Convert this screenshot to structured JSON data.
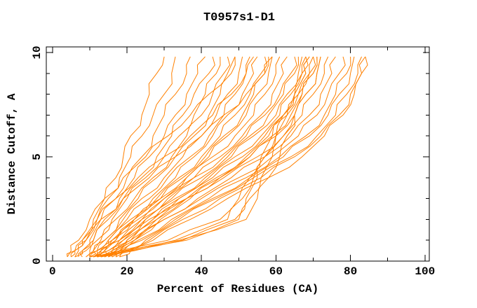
{
  "title": "T0957s1-D1",
  "chart_data": {
    "type": "line",
    "title": "T0957s1-D1",
    "xlabel": "Percent of Residues (CA)",
    "ylabel": "Distance Cutoff, A",
    "xlim": [
      0,
      100
    ],
    "ylim": [
      0,
      10
    ],
    "x_ticks": [
      0,
      20,
      40,
      60,
      80,
      100
    ],
    "x_minor_ticks": [
      10,
      30,
      50,
      70,
      90
    ],
    "y_ticks": [
      0,
      5,
      10
    ],
    "y_minor_ticks": [
      1,
      2,
      3,
      4,
      6,
      7,
      8,
      9
    ],
    "grid": false,
    "legend": "none",
    "line_color": "#ff8000",
    "frame_color": "#000000",
    "background_color": "#ffffff",
    "cutoffs": [
      0.2,
      0.5,
      1,
      2,
      3,
      4,
      5,
      6,
      7,
      8,
      9,
      9.8
    ],
    "series": [
      [
        5,
        6,
        8,
        11,
        14,
        17,
        19,
        21,
        24,
        26,
        28,
        30
      ],
      [
        6,
        7,
        9,
        12,
        15,
        18,
        21,
        24,
        27,
        30,
        32,
        33
      ],
      [
        7,
        8,
        10,
        13,
        17,
        20,
        24,
        27,
        30,
        33,
        36,
        37
      ],
      [
        8,
        9,
        11,
        14,
        18,
        22,
        26,
        30,
        33,
        36,
        39,
        41
      ],
      [
        6,
        8,
        11,
        15,
        19,
        24,
        28,
        32,
        35,
        38,
        42,
        43
      ],
      [
        9,
        10,
        12,
        16,
        20,
        25,
        30,
        34,
        38,
        41,
        44,
        45
      ],
      [
        4,
        5,
        7,
        10,
        14,
        19,
        25,
        31,
        37,
        42,
        47,
        49
      ],
      [
        5,
        6,
        8,
        12,
        17,
        23,
        30,
        37,
        43,
        48,
        52,
        54
      ],
      [
        4,
        6,
        9,
        13,
        19,
        26,
        33,
        40,
        46,
        52,
        57,
        59
      ],
      [
        10,
        11,
        13,
        17,
        22,
        27,
        32,
        36,
        40,
        43,
        46,
        47
      ],
      [
        11,
        12,
        14,
        18,
        23,
        28,
        33,
        38,
        42,
        45,
        48,
        49
      ],
      [
        9,
        11,
        14,
        19,
        24,
        30,
        35,
        40,
        44,
        47,
        50,
        51
      ],
      [
        12,
        13,
        15,
        20,
        26,
        31,
        37,
        42,
        46,
        49,
        52,
        53
      ],
      [
        10,
        12,
        15,
        21,
        27,
        33,
        38,
        43,
        47,
        51,
        54,
        55
      ],
      [
        13,
        14,
        17,
        22,
        28,
        34,
        40,
        45,
        49,
        53,
        56,
        57
      ],
      [
        11,
        13,
        16,
        22,
        29,
        35,
        41,
        46,
        51,
        54,
        57,
        58
      ],
      [
        12,
        14,
        18,
        24,
        30,
        36,
        42,
        47,
        52,
        55,
        58,
        59
      ],
      [
        10,
        12,
        16,
        22,
        29,
        36,
        43,
        49,
        54,
        57,
        60,
        61
      ],
      [
        13,
        15,
        18,
        24,
        31,
        38,
        45,
        51,
        56,
        59,
        62,
        63
      ],
      [
        11,
        13,
        17,
        23,
        30,
        38,
        46,
        52,
        57,
        61,
        64,
        65
      ],
      [
        14,
        16,
        19,
        25,
        32,
        40,
        47,
        53,
        58,
        62,
        65,
        66
      ],
      [
        12,
        14,
        18,
        25,
        33,
        41,
        48,
        54,
        60,
        63,
        66,
        67
      ],
      [
        15,
        17,
        20,
        27,
        34,
        42,
        49,
        56,
        61,
        64,
        67,
        68
      ],
      [
        13,
        15,
        19,
        26,
        34,
        43,
        51,
        57,
        62,
        65,
        68,
        69
      ],
      [
        14,
        16,
        21,
        28,
        36,
        44,
        52,
        58,
        63,
        66,
        69,
        70
      ],
      [
        16,
        18,
        22,
        29,
        37,
        45,
        53,
        59,
        64,
        67,
        70,
        71
      ],
      [
        15,
        17,
        21,
        28,
        36,
        45,
        53,
        60,
        65,
        68,
        71,
        72
      ],
      [
        14,
        16,
        20,
        27,
        36,
        46,
        55,
        62,
        67,
        70,
        73,
        74
      ],
      [
        16,
        18,
        22,
        30,
        39,
        48,
        57,
        64,
        69,
        72,
        75,
        76
      ],
      [
        15,
        17,
        22,
        30,
        40,
        50,
        59,
        66,
        71,
        74,
        77,
        78
      ],
      [
        17,
        19,
        23,
        32,
        42,
        52,
        61,
        68,
        73,
        76,
        79,
        80
      ],
      [
        16,
        19,
        24,
        33,
        43,
        53,
        62,
        69,
        74,
        77,
        80,
        81
      ],
      [
        18,
        20,
        25,
        34,
        44,
        54,
        64,
        71,
        76,
        79,
        82,
        83
      ],
      [
        17,
        20,
        26,
        35,
        45,
        56,
        65,
        72,
        77,
        80,
        83,
        84
      ],
      [
        18,
        21,
        27,
        37,
        47,
        58,
        67,
        73,
        78,
        81,
        83,
        84
      ],
      [
        12,
        20,
        34,
        52,
        55,
        58,
        61,
        63,
        65,
        67,
        70,
        71
      ],
      [
        13,
        22,
        36,
        50,
        53,
        56,
        59,
        62,
        65,
        68,
        71,
        72
      ],
      [
        11,
        19,
        33,
        47,
        51,
        54,
        57,
        60,
        63,
        66,
        69,
        70
      ],
      [
        12,
        21,
        35,
        49,
        52,
        55,
        57,
        60,
        62,
        65,
        68,
        69
      ],
      [
        10,
        18,
        31,
        45,
        50,
        53,
        56,
        59,
        62,
        65,
        67,
        68
      ]
    ]
  }
}
